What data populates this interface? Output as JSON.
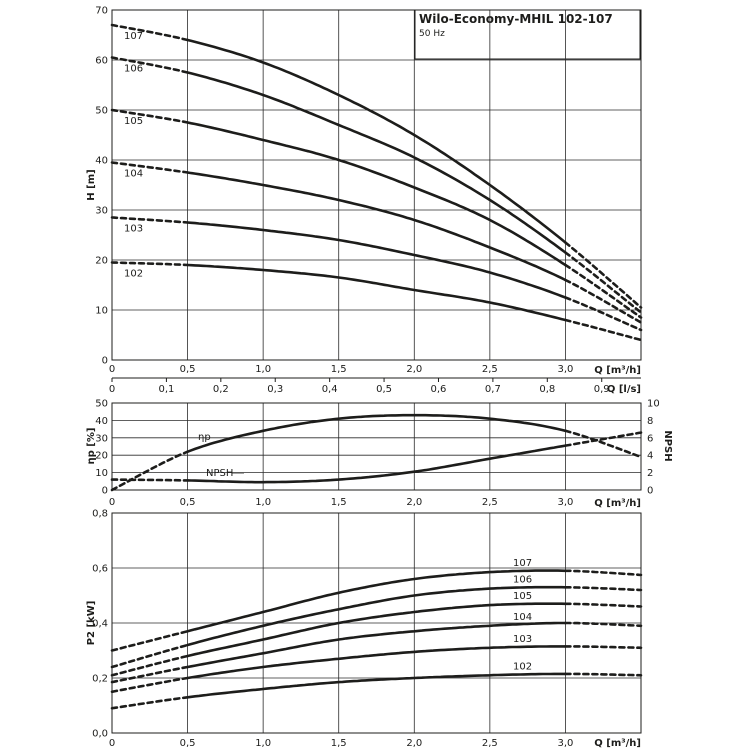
{
  "header": {
    "title": "Wilo-Economy-MHIL 102-107",
    "subtitle": "50 Hz"
  },
  "colors": {
    "curve": "#1d1d1b",
    "grid": "#2b2b2b",
    "background": "#ffffff"
  },
  "chart_data": [
    {
      "id": "head",
      "type": "line",
      "ylabel": "H [m]",
      "xlabel": "Q [m³/h]",
      "xlim": [
        0,
        3.5
      ],
      "ylim": [
        0,
        70
      ],
      "x_ticks": [
        "0",
        "0,5",
        "1,0",
        "1,5",
        "2,0",
        "2,5",
        "3,0"
      ],
      "y_ticks": [
        "0",
        "10",
        "20",
        "30",
        "40",
        "50",
        "60",
        "70"
      ],
      "secondary_xlabel": "Q [l/s]",
      "secondary_xlim": [
        0,
        0.9722
      ],
      "secondary_x_ticks": [
        "0",
        "0,1",
        "0,2",
        "0,3",
        "0,4",
        "0,5",
        "0,6",
        "0,7",
        "0,8",
        "0,9"
      ],
      "grid": true,
      "solid_range": [
        0.5,
        3.0
      ],
      "series": [
        {
          "name": "107",
          "x": [
            0,
            0.5,
            1.0,
            1.5,
            2.0,
            2.5,
            3.0,
            3.5
          ],
          "values": [
            67,
            64,
            59.5,
            53,
            45,
            35,
            23.5,
            10.5
          ]
        },
        {
          "name": "106",
          "x": [
            0,
            0.5,
            1.0,
            1.5,
            2.0,
            2.5,
            3.0,
            3.5
          ],
          "values": [
            60.5,
            57.5,
            53,
            47,
            40.5,
            32,
            21.5,
            9.5
          ]
        },
        {
          "name": "105",
          "x": [
            0,
            0.5,
            1.0,
            1.5,
            2.0,
            2.5,
            3.0,
            3.5
          ],
          "values": [
            50,
            47.5,
            44,
            40,
            34.5,
            28,
            19,
            8.5
          ]
        },
        {
          "name": "104",
          "x": [
            0,
            0.5,
            1.0,
            1.5,
            2.0,
            2.5,
            3.0,
            3.5
          ],
          "values": [
            39.5,
            37.5,
            35,
            32,
            28,
            22.5,
            16,
            7.5
          ]
        },
        {
          "name": "103",
          "x": [
            0,
            0.5,
            1.0,
            1.5,
            2.0,
            2.5,
            3.0,
            3.5
          ],
          "values": [
            28.5,
            27.5,
            26,
            24,
            21,
            17.5,
            12.5,
            6
          ]
        },
        {
          "name": "102",
          "x": [
            0,
            0.5,
            1.0,
            1.5,
            2.0,
            2.5,
            3.0,
            3.5
          ],
          "values": [
            19.5,
            19,
            18,
            16.5,
            14,
            11.5,
            8,
            4
          ]
        }
      ]
    },
    {
      "id": "efficiency",
      "type": "line",
      "ylabel": "ηp [%]",
      "ylabel_right": "NPSH",
      "xlabel": "Q [m³/h]",
      "xlim": [
        0,
        3.5
      ],
      "ylim": [
        0,
        50
      ],
      "ylim_right": [
        0,
        10
      ],
      "x_ticks": [
        "0",
        "0,5",
        "1,0",
        "1,5",
        "2,0",
        "2,5",
        "3,0"
      ],
      "y_ticks": [
        "0",
        "10",
        "20",
        "30",
        "40",
        "50"
      ],
      "y_ticks_right": [
        "0",
        "2",
        "4",
        "6",
        "8",
        "10"
      ],
      "grid": true,
      "solid_range": [
        0.5,
        3.0
      ],
      "series": [
        {
          "name": "ηp",
          "axis": "left",
          "x": [
            0,
            0.5,
            1.0,
            1.5,
            2.0,
            2.5,
            3.0,
            3.5
          ],
          "values": [
            0,
            22,
            34,
            41,
            43,
            41,
            34,
            19
          ]
        },
        {
          "name": "NPSH",
          "axis": "right",
          "x": [
            0,
            0.5,
            1.0,
            1.5,
            2.0,
            2.5,
            3.0,
            3.5
          ],
          "values": [
            1.2,
            1.1,
            0.9,
            1.2,
            2.1,
            3.6,
            5.1,
            6.6
          ]
        }
      ]
    },
    {
      "id": "power",
      "type": "line",
      "ylabel": "P2 [kW]",
      "xlabel": "Q [m³/h]",
      "xlim": [
        0,
        3.5
      ],
      "ylim": [
        0,
        0.8
      ],
      "x_ticks": [
        "0",
        "0,5",
        "1,0",
        "1,5",
        "2,0",
        "2,5",
        "3,0"
      ],
      "y_ticks": [
        "0,0",
        "0,2",
        "0,4",
        "0,6",
        "0,8"
      ],
      "grid": true,
      "solid_range": [
        0.5,
        3.0
      ],
      "series": [
        {
          "name": "107",
          "x": [
            0,
            0.5,
            1.0,
            1.5,
            2.0,
            2.5,
            3.0,
            3.5
          ],
          "values": [
            0.3,
            0.37,
            0.44,
            0.51,
            0.56,
            0.585,
            0.59,
            0.575
          ]
        },
        {
          "name": "106",
          "x": [
            0,
            0.5,
            1.0,
            1.5,
            2.0,
            2.5,
            3.0,
            3.5
          ],
          "values": [
            0.24,
            0.32,
            0.39,
            0.45,
            0.5,
            0.525,
            0.53,
            0.52
          ]
        },
        {
          "name": "105",
          "x": [
            0,
            0.5,
            1.0,
            1.5,
            2.0,
            2.5,
            3.0,
            3.5
          ],
          "values": [
            0.21,
            0.28,
            0.34,
            0.4,
            0.44,
            0.465,
            0.47,
            0.46
          ]
        },
        {
          "name": "104",
          "x": [
            0,
            0.5,
            1.0,
            1.5,
            2.0,
            2.5,
            3.0,
            3.5
          ],
          "values": [
            0.185,
            0.24,
            0.29,
            0.34,
            0.37,
            0.39,
            0.4,
            0.39
          ]
        },
        {
          "name": "103",
          "x": [
            0,
            0.5,
            1.0,
            1.5,
            2.0,
            2.5,
            3.0,
            3.5
          ],
          "values": [
            0.15,
            0.2,
            0.24,
            0.27,
            0.295,
            0.31,
            0.315,
            0.31
          ]
        },
        {
          "name": "102",
          "x": [
            0,
            0.5,
            1.0,
            1.5,
            2.0,
            2.5,
            3.0,
            3.5
          ],
          "values": [
            0.09,
            0.13,
            0.16,
            0.185,
            0.2,
            0.21,
            0.215,
            0.21
          ]
        }
      ]
    }
  ]
}
